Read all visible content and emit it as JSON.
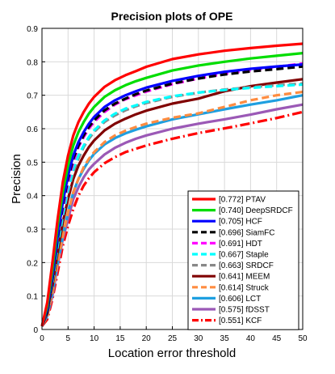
{
  "chart_data": {
    "type": "line",
    "title": "Precision plots of OPE",
    "xlabel": "Location error threshold",
    "ylabel": "Precision",
    "xlim": [
      0,
      50
    ],
    "ylim": [
      0,
      0.9
    ],
    "x": [
      0,
      1,
      2,
      3,
      4,
      5,
      6,
      7,
      8,
      9,
      10,
      12,
      14,
      16,
      18,
      20,
      25,
      30,
      35,
      40,
      45,
      50
    ],
    "xticks": [
      "0",
      "5",
      "10",
      "15",
      "20",
      "25",
      "30",
      "35",
      "40",
      "45",
      "50"
    ],
    "yticks": [
      "0",
      "0.1",
      "0.2",
      "0.3",
      "0.4",
      "0.5",
      "0.6",
      "0.7",
      "0.8",
      "0.9"
    ],
    "grid": true,
    "legend_position": "bottom-right",
    "series": [
      {
        "name": "[0.772] PTAV",
        "color": "#ff0000",
        "dash": "solid",
        "values": [
          0.01,
          0.08,
          0.2,
          0.33,
          0.44,
          0.52,
          0.58,
          0.62,
          0.65,
          0.675,
          0.695,
          0.725,
          0.745,
          0.76,
          0.772,
          0.785,
          0.808,
          0.822,
          0.833,
          0.841,
          0.848,
          0.854
        ]
      },
      {
        "name": "[0.740] DeepSRDCF",
        "color": "#00dd00",
        "dash": "solid",
        "values": [
          0.01,
          0.07,
          0.18,
          0.31,
          0.41,
          0.49,
          0.55,
          0.59,
          0.62,
          0.645,
          0.665,
          0.695,
          0.715,
          0.73,
          0.742,
          0.752,
          0.774,
          0.789,
          0.8,
          0.81,
          0.818,
          0.826
        ]
      },
      {
        "name": "[0.705] HCF",
        "color": "#0000ff",
        "dash": "solid",
        "values": [
          0.01,
          0.06,
          0.16,
          0.28,
          0.38,
          0.46,
          0.52,
          0.56,
          0.59,
          0.615,
          0.635,
          0.665,
          0.685,
          0.7,
          0.712,
          0.723,
          0.743,
          0.758,
          0.77,
          0.779,
          0.786,
          0.792
        ]
      },
      {
        "name": "[0.696] SiamFC",
        "color": "#000000",
        "dash": "dashed",
        "values": [
          0.01,
          0.05,
          0.15,
          0.27,
          0.37,
          0.45,
          0.51,
          0.55,
          0.58,
          0.605,
          0.625,
          0.655,
          0.675,
          0.69,
          0.703,
          0.714,
          0.735,
          0.75,
          0.762,
          0.771,
          0.778,
          0.786
        ]
      },
      {
        "name": "[0.691] HDT",
        "color": "#ff00ff",
        "dash": "dashed",
        "values": [
          0.01,
          0.05,
          0.15,
          0.27,
          0.36,
          0.44,
          0.5,
          0.545,
          0.575,
          0.6,
          0.62,
          0.65,
          0.672,
          0.688,
          0.7,
          0.711,
          0.733,
          0.75,
          0.764,
          0.775,
          0.785,
          0.795
        ]
      },
      {
        "name": "[0.667] Staple",
        "color": "#00ffff",
        "dash": "dashed",
        "values": [
          0.01,
          0.05,
          0.14,
          0.25,
          0.34,
          0.42,
          0.48,
          0.52,
          0.55,
          0.575,
          0.595,
          0.625,
          0.645,
          0.66,
          0.67,
          0.68,
          0.697,
          0.708,
          0.716,
          0.722,
          0.727,
          0.732
        ]
      },
      {
        "name": "[0.663] SRDCF",
        "color": "#888888",
        "dash": "dashed",
        "values": [
          0.01,
          0.05,
          0.14,
          0.25,
          0.34,
          0.41,
          0.47,
          0.51,
          0.545,
          0.57,
          0.59,
          0.62,
          0.64,
          0.655,
          0.667,
          0.677,
          0.695,
          0.708,
          0.717,
          0.724,
          0.73,
          0.735
        ]
      },
      {
        "name": "[0.641] MEEM",
        "color": "#800000",
        "dash": "solid",
        "values": [
          0.01,
          0.05,
          0.13,
          0.23,
          0.32,
          0.39,
          0.45,
          0.49,
          0.52,
          0.545,
          0.565,
          0.595,
          0.615,
          0.63,
          0.643,
          0.654,
          0.675,
          0.69,
          0.712,
          0.727,
          0.738,
          0.748
        ]
      },
      {
        "name": "[0.614] Struck",
        "color": "#ff8c40",
        "dash": "dashed",
        "values": [
          0.01,
          0.04,
          0.11,
          0.2,
          0.28,
          0.35,
          0.41,
          0.45,
          0.485,
          0.51,
          0.53,
          0.56,
          0.58,
          0.594,
          0.605,
          0.615,
          0.633,
          0.646,
          0.665,
          0.685,
          0.7,
          0.71
        ]
      },
      {
        "name": "[0.606] LCT",
        "color": "#1e9fe0",
        "dash": "solid",
        "values": [
          0.01,
          0.04,
          0.11,
          0.2,
          0.28,
          0.35,
          0.41,
          0.45,
          0.48,
          0.505,
          0.525,
          0.553,
          0.572,
          0.586,
          0.597,
          0.607,
          0.628,
          0.643,
          0.658,
          0.672,
          0.685,
          0.7
        ]
      },
      {
        "name": "[0.575] fDSST",
        "color": "#9b59b6",
        "dash": "solid",
        "values": [
          0.01,
          0.04,
          0.1,
          0.19,
          0.27,
          0.33,
          0.39,
          0.425,
          0.455,
          0.478,
          0.495,
          0.523,
          0.543,
          0.558,
          0.57,
          0.58,
          0.6,
          0.615,
          0.628,
          0.642,
          0.658,
          0.672
        ]
      },
      {
        "name": "[0.551] KCF",
        "color": "#ff0000",
        "dash": "dashdot",
        "values": [
          0.01,
          0.03,
          0.09,
          0.17,
          0.25,
          0.31,
          0.36,
          0.4,
          0.43,
          0.452,
          0.47,
          0.497,
          0.515,
          0.53,
          0.54,
          0.55,
          0.57,
          0.587,
          0.601,
          0.616,
          0.632,
          0.65
        ]
      }
    ]
  }
}
